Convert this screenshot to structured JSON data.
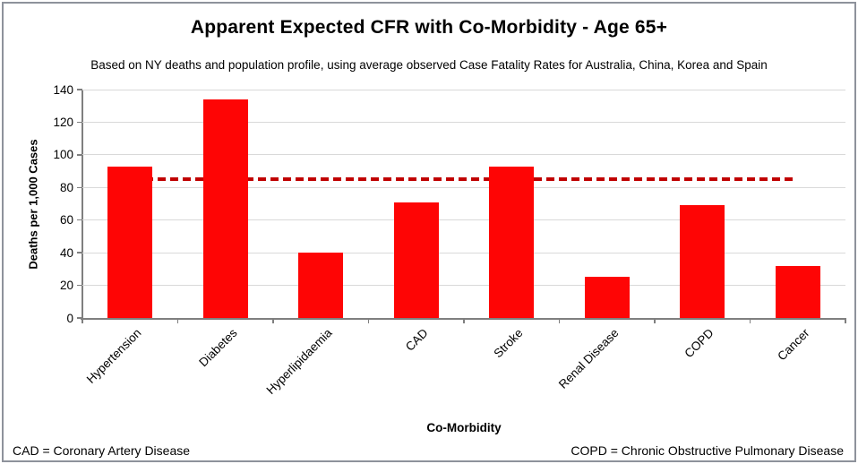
{
  "chart_data": {
    "type": "bar",
    "title": "Apparent Expected CFR with Co-Morbidity - Age 65+",
    "subtitle": "Based on NY deaths and population profile, using average observed Case Fatality Rates for Australia, China, Korea and Spain",
    "categories": [
      "Hypertension",
      "Diabetes",
      "Hyperlipidaemia",
      "CAD",
      "Stroke",
      "Renal Disease",
      "COPD",
      "Cancer"
    ],
    "values": [
      93,
      134,
      40,
      71,
      93,
      25,
      69,
      32
    ],
    "reference_line": {
      "value": 85,
      "style": "dashed",
      "color": "#c00000"
    },
    "xlabel": "Co-Morbidity",
    "ylabel": "Deaths per 1,000 Cases",
    "ylim": [
      0,
      140
    ],
    "yticks": [
      0,
      20,
      40,
      60,
      80,
      100,
      120,
      140
    ],
    "grid": true,
    "legend": false,
    "bar_color": "#fe0505",
    "gridline_color": "#d9d9d9",
    "axis_color": "#7f7f7f"
  },
  "footnotes": {
    "left": "CAD = Coronary Artery Disease",
    "right": "COPD = Chronic Obstructive Pulmonary Disease"
  }
}
